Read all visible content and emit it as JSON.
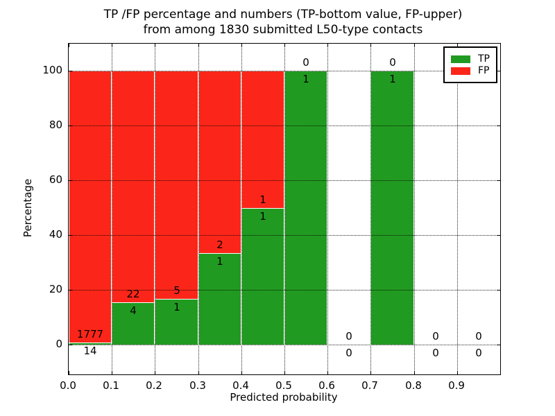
{
  "figure": {
    "title_line1": "TP /FP percentage and numbers (TP-bottom value, FP-upper)",
    "title_line2": "from among 1830 submitted L50-type contacts",
    "xlabel": "Predicted probability",
    "ylabel": "Percentage"
  },
  "legend": {
    "items": [
      {
        "label": "TP",
        "color": "#219a21"
      },
      {
        "label": "FP",
        "color": "#fb2619"
      }
    ]
  },
  "chart_data": {
    "type": "bar",
    "stacked": true,
    "title": "TP /FP percentage and numbers (TP-bottom value, FP-upper) from among 1830 submitted L50-type contacts",
    "xlabel": "Predicted probability",
    "ylabel": "Percentage",
    "total_contacts": 1830,
    "grid": true,
    "legend_position": "upper right",
    "xlim": [
      0.0,
      1.0
    ],
    "ylim": [
      -11,
      110
    ],
    "bin_width": 0.1,
    "x_tick_values": [
      0.0,
      0.1,
      0.2,
      0.3,
      0.4,
      0.5,
      0.6,
      0.7,
      0.8,
      0.9
    ],
    "x_tick_labels": [
      "0.0",
      "0.1",
      "0.2",
      "0.3",
      "0.4",
      "0.5",
      "0.6",
      "0.7",
      "0.8",
      "0.9"
    ],
    "y_ticks": [
      0,
      20,
      40,
      60,
      80,
      100
    ],
    "series": [
      {
        "name": "TP",
        "color": "#219a21",
        "counts": [
          14,
          4,
          1,
          1,
          1,
          1,
          0,
          1,
          0,
          0
        ]
      },
      {
        "name": "FP",
        "color": "#fb2619",
        "counts": [
          1777,
          22,
          5,
          2,
          1,
          0,
          0,
          0,
          0,
          0
        ]
      }
    ],
    "bins": [
      {
        "range": "0.0-0.1",
        "tp": 14,
        "fp": 1777,
        "tp_pct": 0.78,
        "fp_pct": 99.22
      },
      {
        "range": "0.1-0.2",
        "tp": 4,
        "fp": 22,
        "tp_pct": 15.38,
        "fp_pct": 84.62
      },
      {
        "range": "0.2-0.3",
        "tp": 1,
        "fp": 5,
        "tp_pct": 16.67,
        "fp_pct": 83.33
      },
      {
        "range": "0.3-0.4",
        "tp": 1,
        "fp": 2,
        "tp_pct": 33.33,
        "fp_pct": 66.67
      },
      {
        "range": "0.4-0.5",
        "tp": 1,
        "fp": 1,
        "tp_pct": 50.0,
        "fp_pct": 50.0
      },
      {
        "range": "0.5-0.6",
        "tp": 1,
        "fp": 0,
        "tp_pct": 100.0,
        "fp_pct": 0.0
      },
      {
        "range": "0.6-0.7",
        "tp": 0,
        "fp": 0,
        "tp_pct": 0.0,
        "fp_pct": 0.0
      },
      {
        "range": "0.7-0.8",
        "tp": 1,
        "fp": 0,
        "tp_pct": 100.0,
        "fp_pct": 0.0
      },
      {
        "range": "0.8-0.9",
        "tp": 0,
        "fp": 0,
        "tp_pct": 0.0,
        "fp_pct": 0.0
      },
      {
        "range": "0.9-1.0",
        "tp": 0,
        "fp": 0,
        "tp_pct": 0.0,
        "fp_pct": 0.0
      }
    ]
  }
}
